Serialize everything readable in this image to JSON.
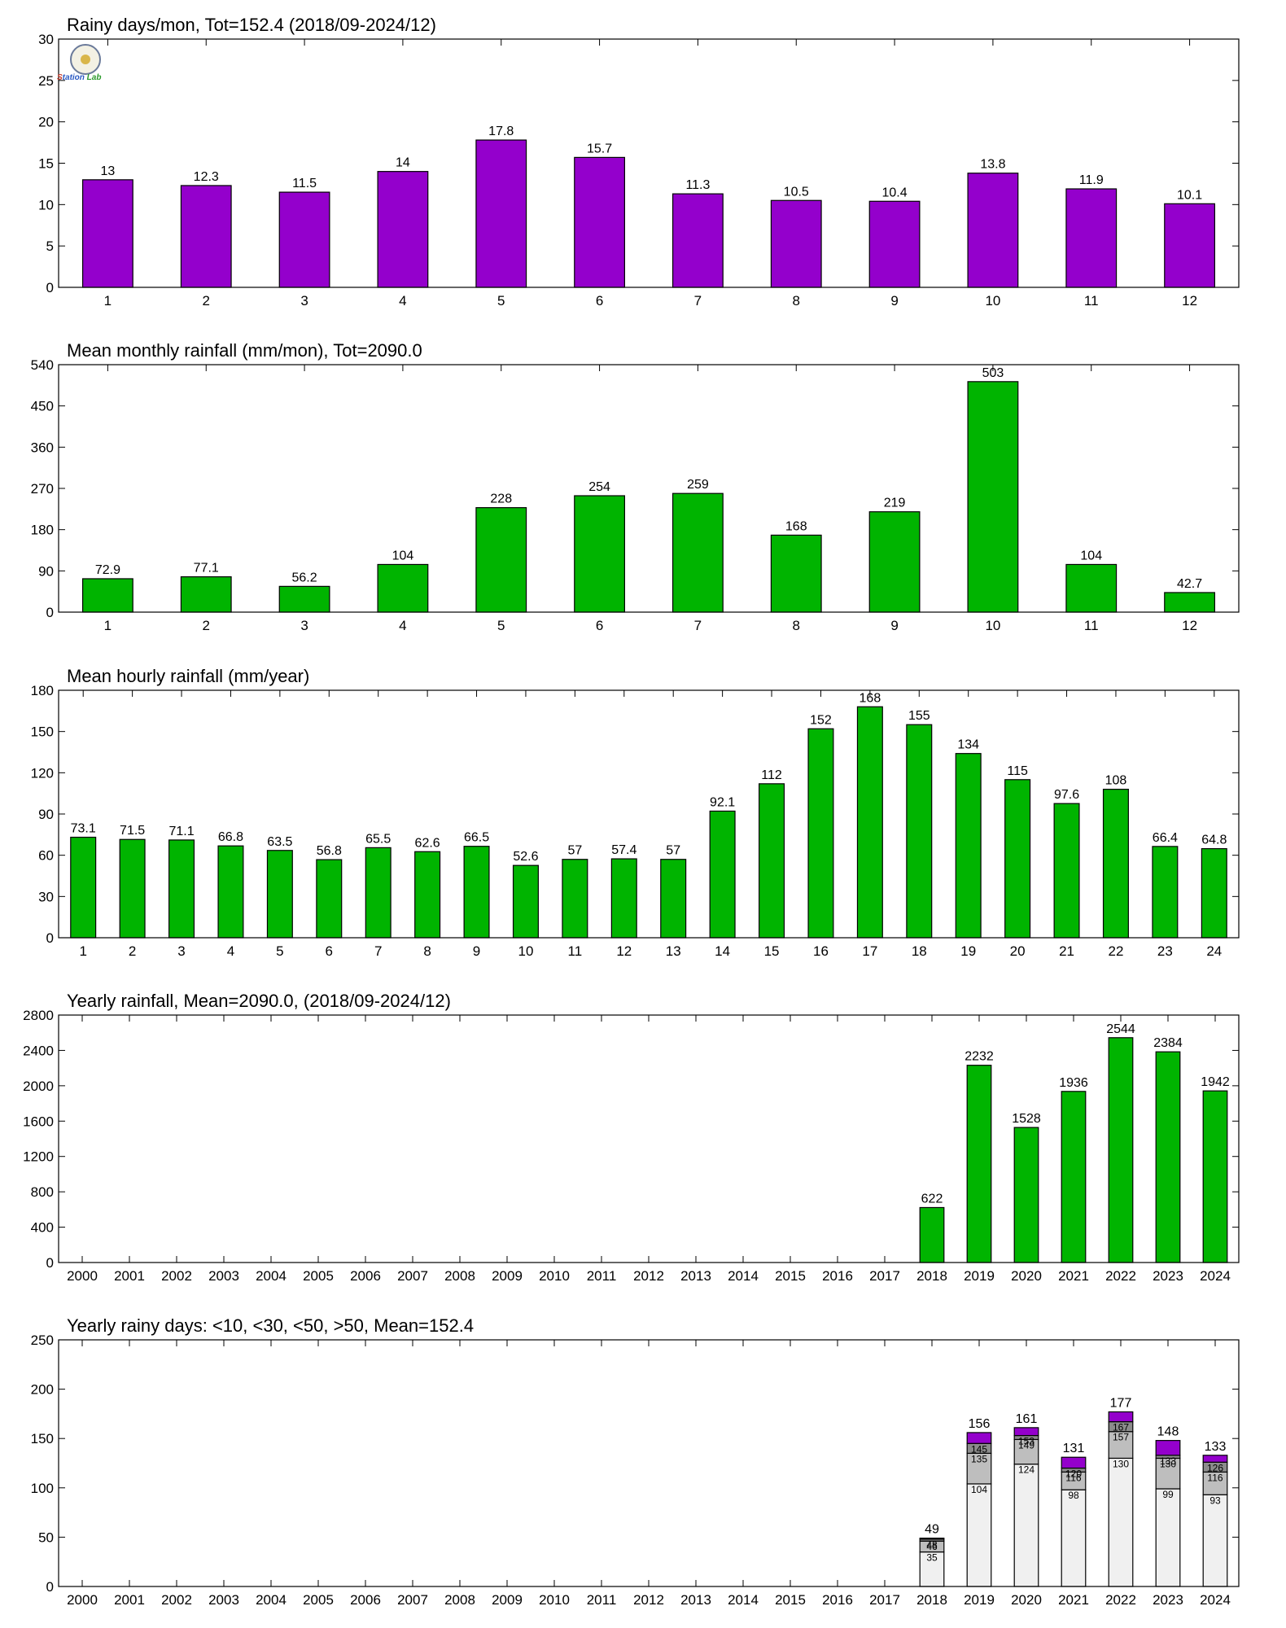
{
  "logo": {
    "name": "station-lab-logo",
    "text": [
      "S",
      "tation",
      " Lab"
    ]
  },
  "colors": {
    "purple": "#9400cc",
    "green": "#00b400",
    "white": "#f0f0f0",
    "lightgray": "#bebebe",
    "gray": "#8c8c8c"
  },
  "chart_data": [
    {
      "type": "bar",
      "title": "Rainy days/mon, Tot=152.4 (2018/09-2024/12)",
      "categories": [
        "1",
        "2",
        "3",
        "4",
        "5",
        "6",
        "7",
        "8",
        "9",
        "10",
        "11",
        "12"
      ],
      "values": [
        13,
        12.3,
        11.5,
        14,
        17.8,
        15.7,
        11.3,
        10.5,
        10.4,
        13.8,
        11.9,
        10.1
      ],
      "labels": [
        "13",
        "12.3",
        "11.5",
        "14",
        "17.8",
        "15.7",
        "11.3",
        "10.5",
        "10.4",
        "13.8",
        "11.9",
        "10.1"
      ],
      "ylim": [
        0,
        30
      ],
      "yticks": [
        "0",
        "5",
        "10",
        "15",
        "20",
        "25",
        "30"
      ],
      "color": "#9400cc"
    },
    {
      "type": "bar",
      "title": "Mean monthly rainfall (mm/mon), Tot=2090.0",
      "categories": [
        "1",
        "2",
        "3",
        "4",
        "5",
        "6",
        "7",
        "8",
        "9",
        "10",
        "11",
        "12"
      ],
      "values": [
        72.9,
        77.1,
        56.2,
        104,
        228,
        254,
        259,
        168,
        219,
        503,
        104,
        42.7
      ],
      "labels": [
        "72.9",
        "77.1",
        "56.2",
        "104",
        "228",
        "254",
        "259",
        "168",
        "219",
        "503",
        "104",
        "42.7"
      ],
      "ylim": [
        0,
        540
      ],
      "yticks": [
        "0",
        "90",
        "180",
        "270",
        "360",
        "450",
        "540"
      ],
      "color": "#00b400"
    },
    {
      "type": "bar",
      "title": "Mean hourly rainfall (mm/year)",
      "categories": [
        "1",
        "2",
        "3",
        "4",
        "5",
        "6",
        "7",
        "8",
        "9",
        "10",
        "11",
        "12",
        "13",
        "14",
        "15",
        "16",
        "17",
        "18",
        "19",
        "20",
        "21",
        "22",
        "23",
        "24"
      ],
      "values": [
        73.1,
        71.5,
        71.1,
        66.8,
        63.5,
        56.8,
        65.5,
        62.6,
        66.5,
        52.6,
        57,
        57.4,
        57,
        92.1,
        112,
        152,
        168,
        155,
        134,
        115,
        97.6,
        108,
        66.4,
        64.8
      ],
      "labels": [
        "73.1",
        "71.5",
        "71.1",
        "66.8",
        "63.5",
        "56.8",
        "65.5",
        "62.6",
        "66.5",
        "52.6",
        "57",
        "57.4",
        "57",
        "92.1",
        "112",
        "152",
        "168",
        "155",
        "134",
        "115",
        "97.6",
        "108",
        "66.4",
        "64.8"
      ],
      "ylim": [
        0,
        180
      ],
      "yticks": [
        "0",
        "30",
        "60",
        "90",
        "120",
        "150",
        "180"
      ],
      "color": "#00b400"
    },
    {
      "type": "bar",
      "title": "Yearly rainfall, Mean=2090.0, (2018/09-2024/12)",
      "categories": [
        "2000",
        "2001",
        "2002",
        "2003",
        "2004",
        "2005",
        "2006",
        "2007",
        "2008",
        "2009",
        "2010",
        "2011",
        "2012",
        "2013",
        "2014",
        "2015",
        "2016",
        "2017",
        "2018",
        "2019",
        "2020",
        "2021",
        "2022",
        "2023",
        "2024"
      ],
      "values": [
        null,
        null,
        null,
        null,
        null,
        null,
        null,
        null,
        null,
        null,
        null,
        null,
        null,
        null,
        null,
        null,
        null,
        null,
        622,
        2232,
        1528,
        1936,
        2544,
        2384,
        1942
      ],
      "labels": [
        "",
        "",
        "",
        "",
        "",
        "",
        "",
        "",
        "",
        "",
        "",
        "",
        "",
        "",
        "",
        "",
        "",
        "",
        "622",
        "2232",
        "1528",
        "1936",
        "2544",
        "2384",
        "1942"
      ],
      "ylim": [
        0,
        2800
      ],
      "yticks": [
        "0",
        "400",
        "800",
        "1200",
        "1600",
        "2000",
        "2400",
        "2800"
      ],
      "color": "#00b400"
    },
    {
      "type": "bar",
      "stacked": true,
      "title": "Yearly rainy days: <10, <30, <50, >50, Mean=152.4",
      "categories": [
        "2000",
        "2001",
        "2002",
        "2003",
        "2004",
        "2005",
        "2006",
        "2007",
        "2008",
        "2009",
        "2010",
        "2011",
        "2012",
        "2013",
        "2014",
        "2015",
        "2016",
        "2017",
        "2018",
        "2019",
        "2020",
        "2021",
        "2022",
        "2023",
        "2024"
      ],
      "ylim": [
        0,
        250
      ],
      "yticks": [
        "0",
        "50",
        "100",
        "150",
        "200",
        "250"
      ],
      "bars": [
        {
          "year": "2018",
          "cum": [
            35,
            46,
            48,
            49
          ],
          "labels": [
            "35",
            "46",
            "48"
          ],
          "total": "49"
        },
        {
          "year": "2019",
          "cum": [
            104,
            135,
            145,
            156
          ],
          "labels": [
            "104",
            "135",
            "145"
          ],
          "total": "156"
        },
        {
          "year": "2020",
          "cum": [
            124,
            149,
            153,
            161
          ],
          "labels": [
            "124",
            "149",
            "153"
          ],
          "total": "161"
        },
        {
          "year": "2021",
          "cum": [
            98,
            116,
            120,
            131
          ],
          "labels": [
            "98",
            "116",
            "120"
          ],
          "total": "131"
        },
        {
          "year": "2022",
          "cum": [
            130,
            157,
            167,
            177
          ],
          "labels": [
            "130",
            "157",
            "167"
          ],
          "total": "177"
        },
        {
          "year": "2023",
          "cum": [
            99,
            130,
            133,
            148
          ],
          "labels": [
            "99",
            "130",
            "133"
          ],
          "total": "148"
        },
        {
          "year": "2024",
          "cum": [
            93,
            116,
            126,
            133
          ],
          "labels": [
            "93",
            "116",
            "126"
          ],
          "total": "133"
        }
      ],
      "segment_colors": [
        "#f0f0f0",
        "#bebebe",
        "#8c8c8c",
        "#9400cc"
      ]
    }
  ]
}
